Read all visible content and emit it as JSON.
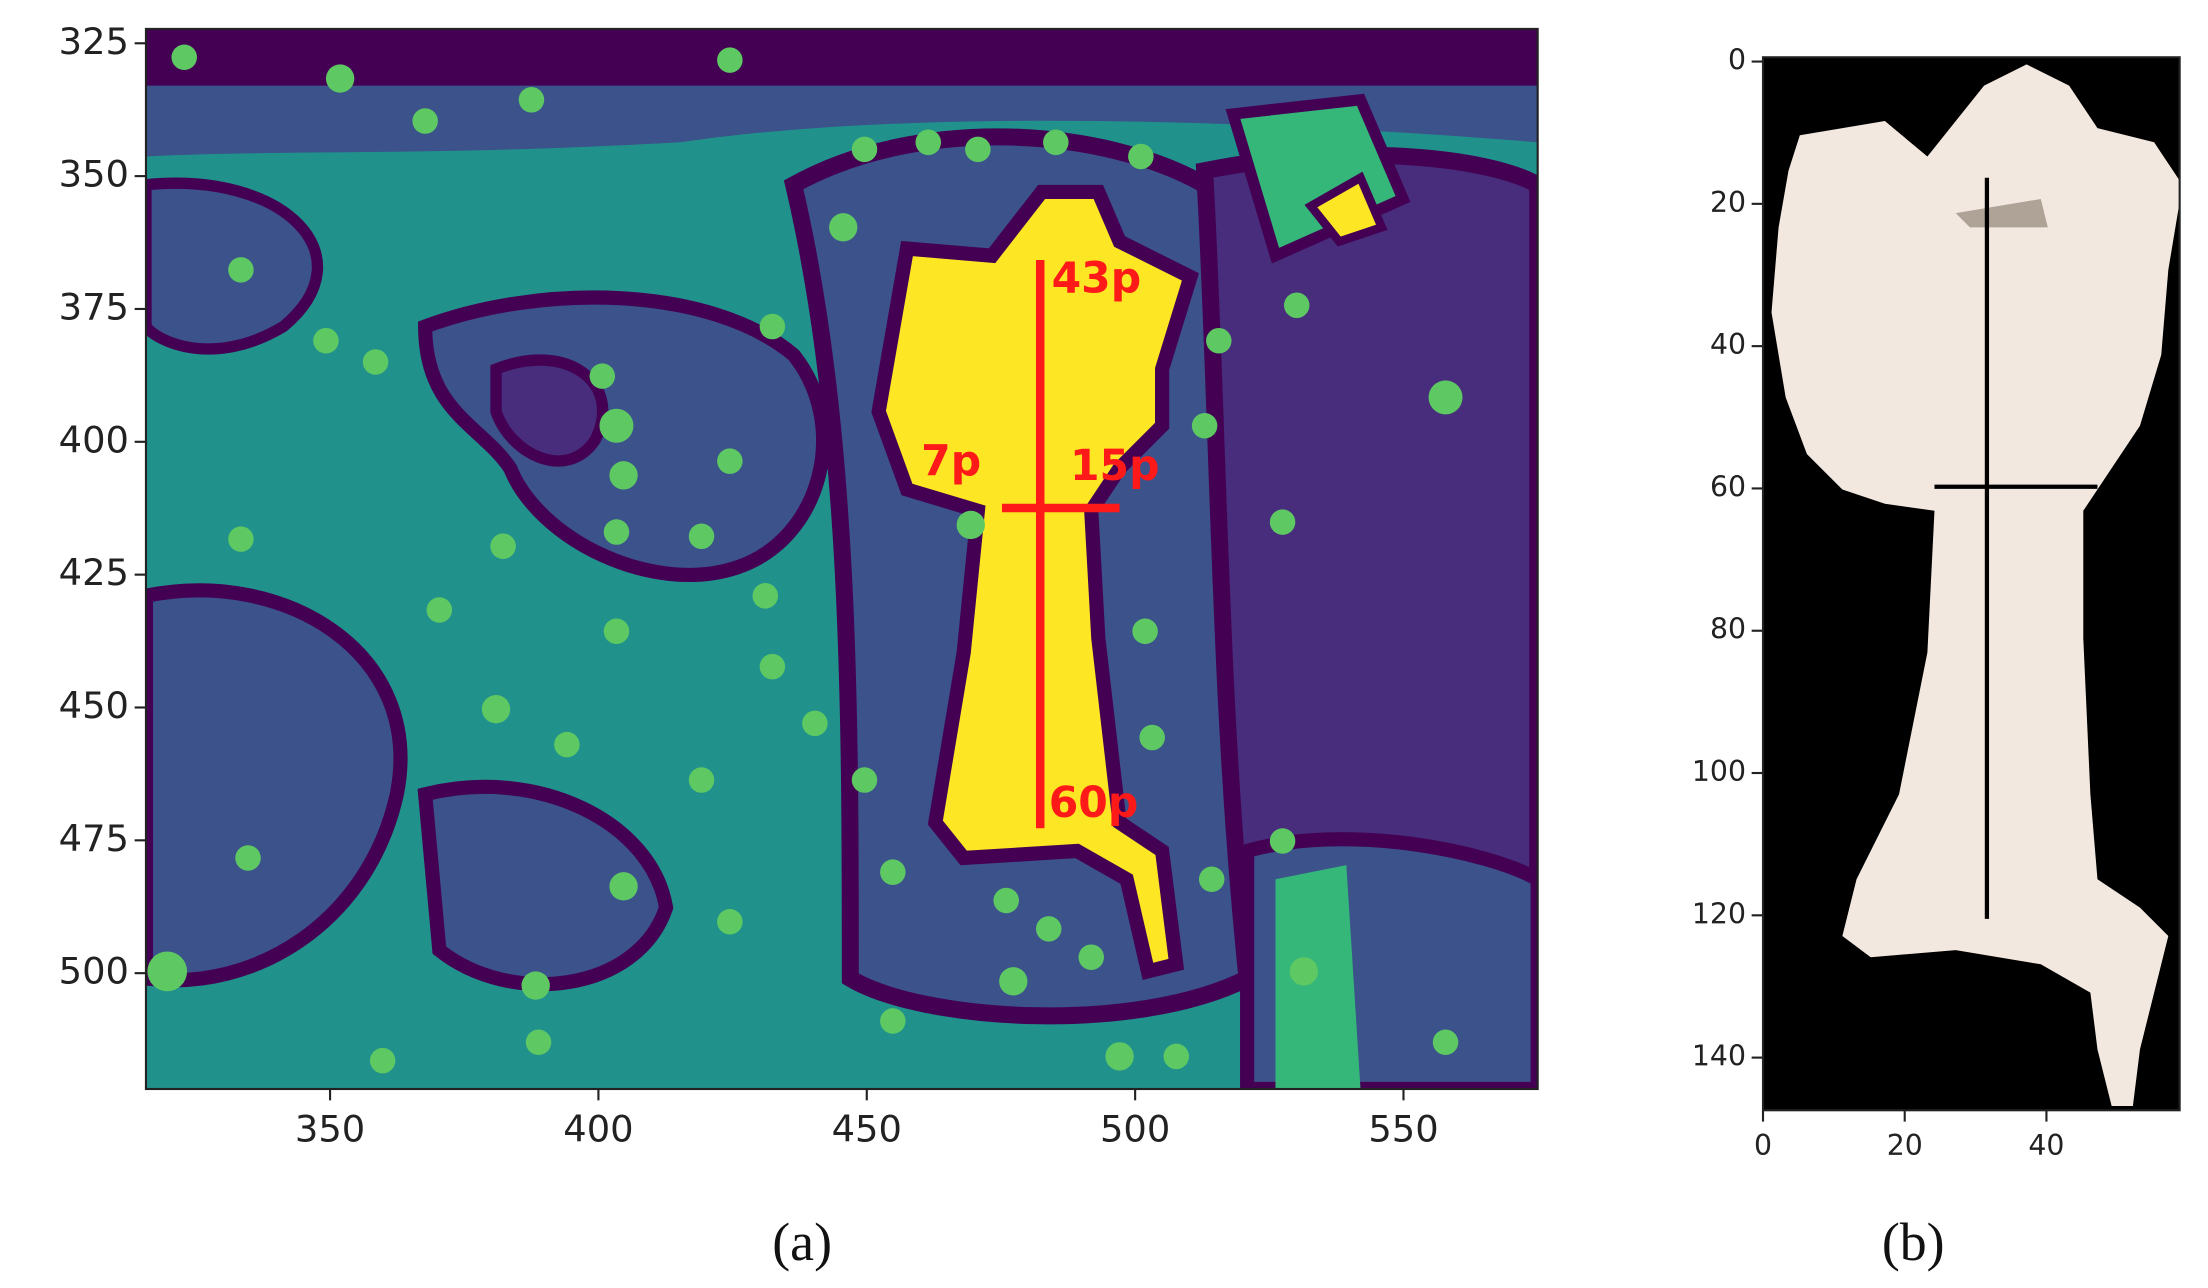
{
  "chart_data": [
    {
      "type": "image",
      "caption": "(a)",
      "xlim": [
        315.7,
        575
      ],
      "xticks": [
        350,
        400,
        450,
        500,
        550
      ],
      "ylim": [
        322.3,
        521.8
      ],
      "yticks": [
        325,
        350,
        375,
        400,
        425,
        450,
        475,
        500
      ],
      "y_inverted": true,
      "annotations": [
        "43p",
        "7p",
        "15p",
        "60p"
      ]
    },
    {
      "type": "image",
      "caption": "(b)",
      "xlim": [
        0,
        58.8
      ],
      "xticks": [
        0,
        20,
        40
      ],
      "ylim": [
        -0.6,
        147.4
      ],
      "yticks": [
        0,
        20,
        40,
        60,
        80,
        100,
        120,
        140
      ],
      "y_inverted": true
    }
  ]
}
